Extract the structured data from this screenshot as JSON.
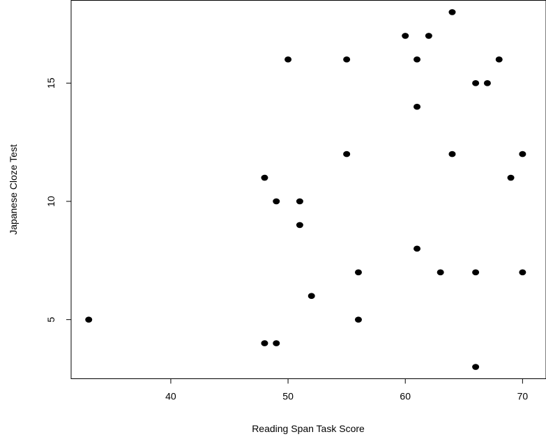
{
  "chart_data": {
    "type": "scatter",
    "title": "",
    "xlabel": "Reading Span Task Score",
    "ylabel": "Japanese Cloze Test",
    "xlim": [
      31.5,
      72
    ],
    "ylim": [
      2.5,
      18.5
    ],
    "x_ticks": [
      40,
      50,
      60,
      70
    ],
    "x_tick_labels": [
      "40",
      "50",
      "60",
      "70"
    ],
    "y_ticks": [
      5,
      10,
      15
    ],
    "y_tick_labels": [
      "5",
      "10",
      "15"
    ],
    "grid": false,
    "legend": "none",
    "marker_color": "#000000",
    "points": [
      {
        "x": 33,
        "y": 5
      },
      {
        "x": 48,
        "y": 11
      },
      {
        "x": 48,
        "y": 4
      },
      {
        "x": 49,
        "y": 10
      },
      {
        "x": 49,
        "y": 4
      },
      {
        "x": 50,
        "y": 16
      },
      {
        "x": 51,
        "y": 10
      },
      {
        "x": 51,
        "y": 9
      },
      {
        "x": 52,
        "y": 6
      },
      {
        "x": 55,
        "y": 16
      },
      {
        "x": 55,
        "y": 12
      },
      {
        "x": 56,
        "y": 7
      },
      {
        "x": 56,
        "y": 5
      },
      {
        "x": 60,
        "y": 17
      },
      {
        "x": 61,
        "y": 16
      },
      {
        "x": 61,
        "y": 14
      },
      {
        "x": 61,
        "y": 8
      },
      {
        "x": 62,
        "y": 17
      },
      {
        "x": 63,
        "y": 7
      },
      {
        "x": 64,
        "y": 18
      },
      {
        "x": 64,
        "y": 12
      },
      {
        "x": 66,
        "y": 15
      },
      {
        "x": 66,
        "y": 7
      },
      {
        "x": 66,
        "y": 3
      },
      {
        "x": 67,
        "y": 15
      },
      {
        "x": 68,
        "y": 16
      },
      {
        "x": 69,
        "y": 11
      },
      {
        "x": 70,
        "y": 12
      },
      {
        "x": 70,
        "y": 7
      }
    ]
  }
}
